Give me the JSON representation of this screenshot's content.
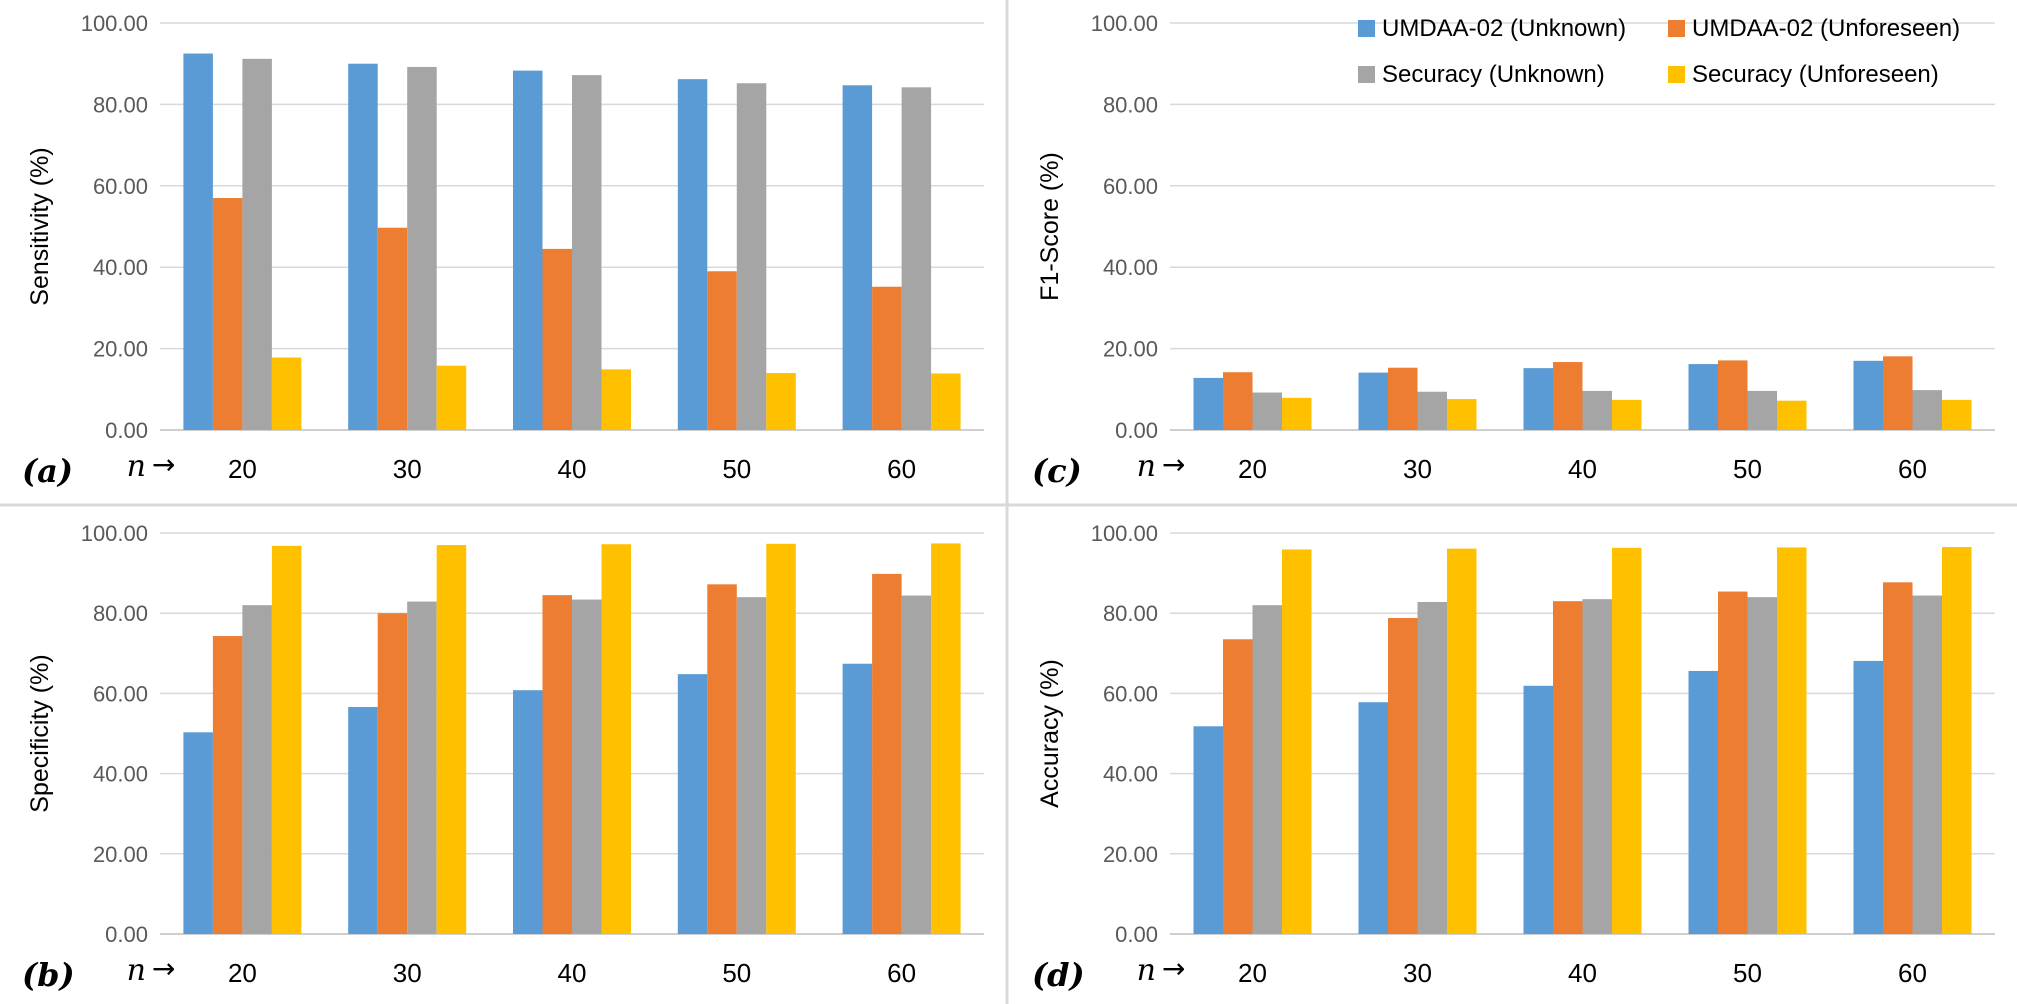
{
  "legend": {
    "placement": "top-right of panel c",
    "entries": [
      {
        "name": "UMDAA-02 (Unknown)",
        "color": "#5B9BD5"
      },
      {
        "name": "UMDAA-02 (Unforeseen)",
        "color": "#ED7D31"
      },
      {
        "name": "Securacy (Unknown)",
        "color": "#A5A5A5"
      },
      {
        "name": "Securacy (Unforeseen)",
        "color": "#FFC000"
      }
    ]
  },
  "chart_data": [
    {
      "id": "a",
      "panel_label": "(a)",
      "type": "bar",
      "ylabel": "Sensitivity (%)",
      "x_marker": "n",
      "x_arrow": "→",
      "categories": [
        "20",
        "30",
        "40",
        "50",
        "60"
      ],
      "ylim": [
        0,
        100
      ],
      "yticks": [
        "0.00",
        "20.00",
        "40.00",
        "60.00",
        "80.00",
        "100.00"
      ],
      "grid": true,
      "series": [
        {
          "name": "UMDAA-02 (Unknown)",
          "values": [
            92.5,
            90.0,
            88.3,
            86.2,
            84.7
          ]
        },
        {
          "name": "UMDAA-02 (Unforeseen)",
          "values": [
            57.0,
            49.7,
            44.5,
            39.0,
            35.2
          ]
        },
        {
          "name": "Securacy (Unknown)",
          "values": [
            91.2,
            89.2,
            87.2,
            85.2,
            84.2
          ]
        },
        {
          "name": "Securacy (Unforeseen)",
          "values": [
            17.8,
            15.8,
            14.9,
            14.0,
            13.9
          ]
        }
      ]
    },
    {
      "id": "b",
      "panel_label": "(b)",
      "type": "bar",
      "ylabel": "Specificity (%)",
      "x_marker": "n",
      "x_arrow": "→",
      "categories": [
        "20",
        "30",
        "40",
        "50",
        "60"
      ],
      "ylim": [
        0,
        100
      ],
      "yticks": [
        "0.00",
        "20.00",
        "40.00",
        "60.00",
        "80.00",
        "100.00"
      ],
      "grid": true,
      "series": [
        {
          "name": "UMDAA-02 (Unknown)",
          "values": [
            50.3,
            56.6,
            60.8,
            64.8,
            67.4
          ]
        },
        {
          "name": "UMDAA-02 (Unforeseen)",
          "values": [
            74.3,
            80.0,
            84.5,
            87.2,
            89.8
          ]
        },
        {
          "name": "Securacy (Unknown)",
          "values": [
            82.0,
            82.9,
            83.4,
            84.0,
            84.4
          ]
        },
        {
          "name": "Securacy (Unforeseen)",
          "values": [
            96.8,
            97.0,
            97.2,
            97.3,
            97.4
          ]
        }
      ]
    },
    {
      "id": "c",
      "panel_label": "(c)",
      "type": "bar",
      "ylabel": "F1-Score (%)",
      "x_marker": "n",
      "x_arrow": "→",
      "categories": [
        "20",
        "30",
        "40",
        "50",
        "60"
      ],
      "ylim": [
        0,
        100
      ],
      "yticks": [
        "0.00",
        "20.00",
        "40.00",
        "60.00",
        "80.00",
        "100.00"
      ],
      "grid": true,
      "series": [
        {
          "name": "UMDAA-02 (Unknown)",
          "values": [
            12.8,
            14.1,
            15.2,
            16.2,
            17.0
          ]
        },
        {
          "name": "UMDAA-02 (Unforeseen)",
          "values": [
            14.2,
            15.3,
            16.7,
            17.1,
            18.1
          ]
        },
        {
          "name": "Securacy (Unknown)",
          "values": [
            9.2,
            9.4,
            9.6,
            9.6,
            9.8
          ]
        },
        {
          "name": "Securacy (Unforeseen)",
          "values": [
            7.9,
            7.6,
            7.4,
            7.2,
            7.4
          ]
        }
      ]
    },
    {
      "id": "d",
      "panel_label": "(d)",
      "type": "bar",
      "ylabel": "Accuracy (%)",
      "x_marker": "n",
      "x_arrow": "→",
      "categories": [
        "20",
        "30",
        "40",
        "50",
        "60"
      ],
      "ylim": [
        0,
        100
      ],
      "yticks": [
        "0.00",
        "20.00",
        "40.00",
        "60.00",
        "80.00",
        "100.00"
      ],
      "grid": true,
      "series": [
        {
          "name": "UMDAA-02 (Unknown)",
          "values": [
            51.8,
            57.8,
            61.9,
            65.6,
            68.1
          ]
        },
        {
          "name": "UMDAA-02 (Unforeseen)",
          "values": [
            73.5,
            78.8,
            83.0,
            85.4,
            87.7
          ]
        },
        {
          "name": "Securacy (Unknown)",
          "values": [
            82.0,
            82.8,
            83.5,
            84.0,
            84.4
          ]
        },
        {
          "name": "Securacy (Unforeseen)",
          "values": [
            95.9,
            96.1,
            96.3,
            96.4,
            96.5
          ]
        }
      ]
    }
  ]
}
